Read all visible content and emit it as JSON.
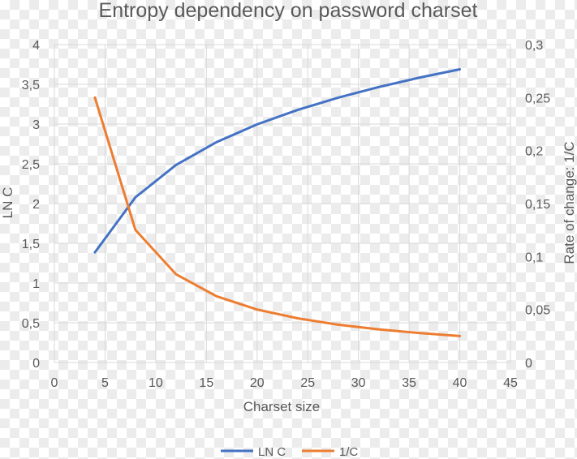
{
  "chart_data": {
    "type": "line",
    "title": "Entropy dependency on password charset",
    "xlabel": "Charset size",
    "ylabel": "LN C",
    "y2label": "Rate of change: 1/C",
    "xlim": [
      0,
      45
    ],
    "ylim": [
      0,
      4
    ],
    "y2lim": [
      0,
      0.3
    ],
    "grid": true,
    "legend": "bottom",
    "x_ticks": [
      "0",
      "5",
      "10",
      "15",
      "20",
      "25",
      "30",
      "35",
      "40",
      "45"
    ],
    "y_ticks": [
      "0",
      "0,5",
      "1",
      "1,5",
      "2",
      "2,5",
      "3",
      "3,5",
      "4"
    ],
    "y2_ticks": [
      "0",
      "0,05",
      "0,1",
      "0,15",
      "0,2",
      "0,25",
      "0,3"
    ],
    "x": [
      4,
      8,
      12,
      16,
      20,
      24,
      28,
      32,
      36,
      40
    ],
    "series": [
      {
        "name": "LN C",
        "axis": "left",
        "color": "#4472C4",
        "values": [
          1.386,
          2.079,
          2.485,
          2.773,
          2.996,
          3.178,
          3.332,
          3.466,
          3.584,
          3.689
        ]
      },
      {
        "name": "1/C",
        "axis": "right",
        "color": "#ED7D31",
        "values": [
          0.25,
          0.125,
          0.0833,
          0.0625,
          0.05,
          0.0417,
          0.0357,
          0.03125,
          0.0278,
          0.025
        ]
      }
    ]
  }
}
